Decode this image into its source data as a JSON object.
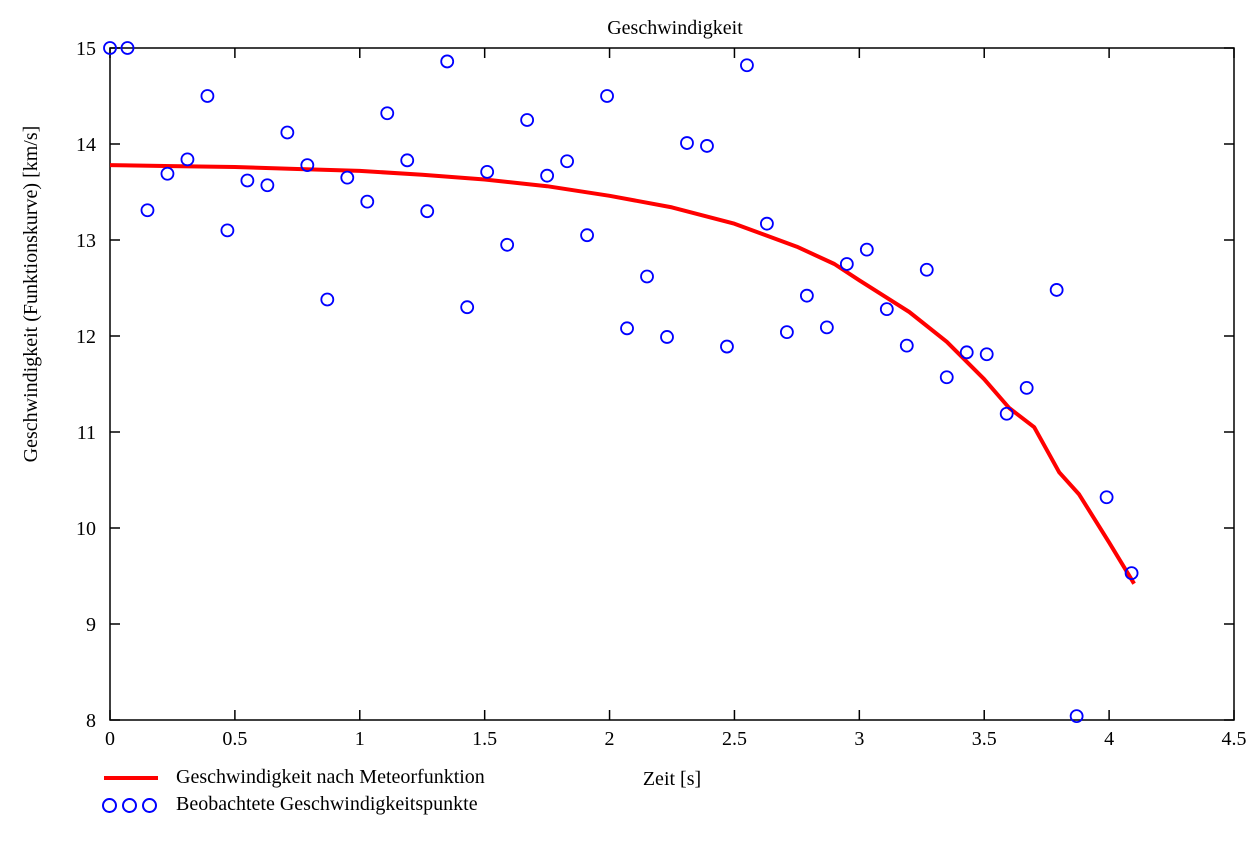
{
  "chart_data": {
    "type": "scatter",
    "title": "Geschwindigkeit",
    "xlabel": "Zeit [s]",
    "ylabel": "Geschwindigkeit (Funktionskurve) [km/s]",
    "xlim": [
      0,
      4.5
    ],
    "ylim": [
      8,
      15
    ],
    "xticks": [
      0,
      0.5,
      1,
      1.5,
      2,
      2.5,
      3,
      3.5,
      4,
      4.5
    ],
    "xtick_labels": [
      "0",
      "0.5",
      "1",
      "1.5",
      "2",
      "2.5",
      "3",
      "3.5",
      "4",
      "4.5"
    ],
    "yticks": [
      8,
      9,
      10,
      11,
      12,
      13,
      14,
      15
    ],
    "ytick_labels": [
      "8",
      "9",
      "10",
      "11",
      "12",
      "13",
      "14",
      "15"
    ],
    "grid": false,
    "legend_position": "bottom-left, below axes",
    "series": [
      {
        "name": "Geschwindigkeit nach Meteorfunktion",
        "kind": "line",
        "color": "#ff0000",
        "x": [
          0,
          0.25,
          0.5,
          0.75,
          1.0,
          1.25,
          1.5,
          1.75,
          2.0,
          2.25,
          2.5,
          2.75,
          2.9,
          3.0,
          3.2,
          3.35,
          3.5,
          3.6,
          3.7,
          3.8,
          3.88,
          4.0,
          4.1
        ],
        "y": [
          13.78,
          13.77,
          13.76,
          13.74,
          13.72,
          13.68,
          13.63,
          13.56,
          13.46,
          13.34,
          13.17,
          12.93,
          12.75,
          12.58,
          12.25,
          11.94,
          11.55,
          11.25,
          11.05,
          10.58,
          10.35,
          9.85,
          9.42
        ]
      },
      {
        "name": "Beobachtete Geschwindigkeitspunkte",
        "kind": "scatter",
        "color": "#0000ff",
        "x": [
          0.0,
          0.07,
          0.15,
          0.23,
          0.31,
          0.39,
          0.47,
          0.55,
          0.63,
          0.71,
          0.79,
          0.87,
          0.95,
          1.03,
          1.11,
          1.19,
          1.27,
          1.35,
          1.43,
          1.51,
          1.59,
          1.67,
          1.75,
          1.83,
          1.91,
          1.99,
          2.07,
          2.15,
          2.23,
          2.31,
          2.39,
          2.47,
          2.55,
          2.63,
          2.71,
          2.79,
          2.87,
          2.95,
          3.03,
          3.11,
          3.19,
          3.27,
          3.35,
          3.43,
          3.51,
          3.59,
          3.67,
          3.79,
          3.87,
          3.99,
          4.09
        ],
        "y": [
          15.0,
          15.0,
          13.31,
          13.69,
          13.84,
          14.5,
          13.1,
          13.62,
          13.57,
          14.12,
          13.78,
          12.38,
          13.65,
          13.4,
          14.32,
          13.83,
          13.3,
          14.86,
          12.3,
          13.71,
          12.95,
          14.25,
          13.67,
          13.82,
          13.05,
          14.5,
          12.08,
          12.62,
          11.99,
          14.01,
          13.98,
          11.89,
          14.82,
          13.17,
          12.04,
          12.42,
          12.09,
          12.75,
          12.9,
          12.28,
          11.9,
          12.69,
          11.57,
          11.83,
          11.81,
          11.19,
          11.46,
          12.48,
          8.04,
          10.32,
          9.53
        ]
      }
    ]
  }
}
